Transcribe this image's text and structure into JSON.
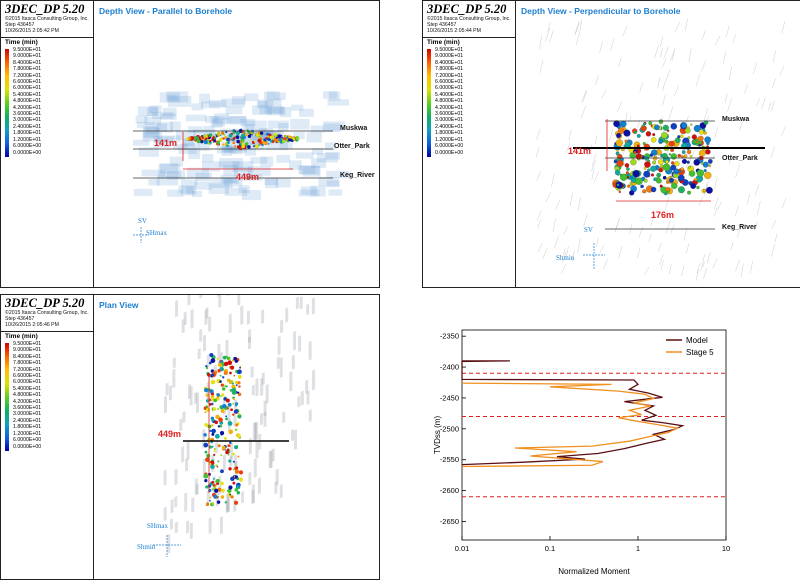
{
  "panels": [
    {
      "app_title": "3DEC_DP 5.20",
      "copyright": "©2015 Itasca Consulting Group, Inc.",
      "step": "Step 436457",
      "date": "10/26/2015 2:05:42 PM",
      "view_title": "Depth View - Parallel to Borehole",
      "time_label": "Time (min)",
      "formation_labels": [
        "Muskwa",
        "Otter_Park",
        "Keg_River"
      ],
      "dimensions": [
        "141m",
        "449m"
      ],
      "orientation_labels": [
        "SV",
        "SHmax"
      ]
    },
    {
      "app_title": "3DEC_DP 5.20",
      "copyright": "©2015 Itasca Consulting Group, Inc.",
      "step": "Step 436457",
      "date": "10/26/2015 2:05:44 PM",
      "view_title": "Depth View - Perpendicular to Borehole",
      "time_label": "Time (min)",
      "formation_labels": [
        "Muskwa",
        "Otter_Park",
        "Keg_River"
      ],
      "dimensions": [
        "141m",
        "176m"
      ],
      "orientation_labels": [
        "SV",
        "Shmin"
      ]
    },
    {
      "app_title": "3DEC_DP 5.20",
      "copyright": "©2015 Itasca Consulting Group, Inc.",
      "step": "Step 436457",
      "date": "10/26/2015 2:05:46 PM",
      "view_title": "Plan View",
      "time_label": "Time (min)",
      "dimensions": [
        "449m"
      ],
      "orientation_labels": [
        "SHmax",
        "Shmin"
      ]
    }
  ],
  "colorbar_ticks": [
    "9.5000E+01",
    "9.0000E+01",
    "8.4000E+01",
    "7.8000E+01",
    "7.2000E+01",
    "6.6000E+01",
    "6.0000E+01",
    "5.4000E+01",
    "4.8000E+01",
    "4.2000E+01",
    "3.6000E+01",
    "3.0000E+01",
    "2.4000E+01",
    "1.8000E+01",
    "1.2000E+01",
    "6.0000E+00",
    "0.0000E+00"
  ],
  "chart_data": {
    "type": "line",
    "xlabel": "Normalized Moment",
    "ylabel": "TVDss (m)",
    "x_scale": "log",
    "xlim": [
      0.01,
      10
    ],
    "ylim": [
      -2680,
      -2340
    ],
    "x_ticks": [
      "0.01",
      "0.1",
      "1",
      "10"
    ],
    "y_ticks": [
      "-2350",
      "-2400",
      "-2450",
      "-2500",
      "-2550",
      "-2600",
      "-2650"
    ],
    "y_tick_values": [
      -2350,
      -2400,
      -2450,
      -2500,
      -2550,
      -2600,
      -2650
    ],
    "reference_lines_y": [
      -2410,
      -2480,
      -2610
    ],
    "legend_position": "top-right",
    "series": [
      {
        "name": "Model",
        "color": "#5a0f14",
        "points": [
          [
            0.01,
            -2390
          ],
          [
            0.035,
            -2390
          ],
          [
            0.01,
            -2391
          ],
          [
            0.01,
            -2420
          ],
          [
            0.9,
            -2421
          ],
          [
            1.0,
            -2428
          ],
          [
            0.8,
            -2436
          ],
          [
            1.3,
            -2442
          ],
          [
            1.9,
            -2449
          ],
          [
            0.7,
            -2456
          ],
          [
            1.5,
            -2463
          ],
          [
            1.2,
            -2470
          ],
          [
            1.6,
            -2478
          ],
          [
            1.1,
            -2486
          ],
          [
            1.9,
            -2490
          ],
          [
            3.2,
            -2495
          ],
          [
            2.6,
            -2501
          ],
          [
            1.5,
            -2509
          ],
          [
            2.0,
            -2517
          ],
          [
            1.2,
            -2524
          ],
          [
            0.7,
            -2532
          ],
          [
            0.35,
            -2540
          ],
          [
            0.12,
            -2545
          ],
          [
            0.25,
            -2549
          ],
          [
            0.05,
            -2554
          ],
          [
            0.01,
            -2558
          ]
        ]
      },
      {
        "name": "Stage 5",
        "color": "#f0901e",
        "points": [
          [
            0.01,
            -2426
          ],
          [
            0.5,
            -2428
          ],
          [
            0.1,
            -2432
          ],
          [
            0.6,
            -2439
          ],
          [
            1.2,
            -2444
          ],
          [
            1.5,
            -2451
          ],
          [
            0.9,
            -2458
          ],
          [
            1.4,
            -2463
          ],
          [
            0.8,
            -2470
          ],
          [
            1.1,
            -2477
          ],
          [
            0.6,
            -2482
          ],
          [
            1.0,
            -2488
          ],
          [
            1.8,
            -2494
          ],
          [
            2.8,
            -2499
          ],
          [
            2.2,
            -2506
          ],
          [
            1.4,
            -2512
          ],
          [
            0.8,
            -2520
          ],
          [
            0.3,
            -2528
          ],
          [
            0.04,
            -2531
          ],
          [
            0.2,
            -2537
          ],
          [
            0.06,
            -2544
          ],
          [
            0.4,
            -2553
          ],
          [
            0.3,
            -2559
          ],
          [
            0.01,
            -2561
          ]
        ]
      }
    ]
  }
}
